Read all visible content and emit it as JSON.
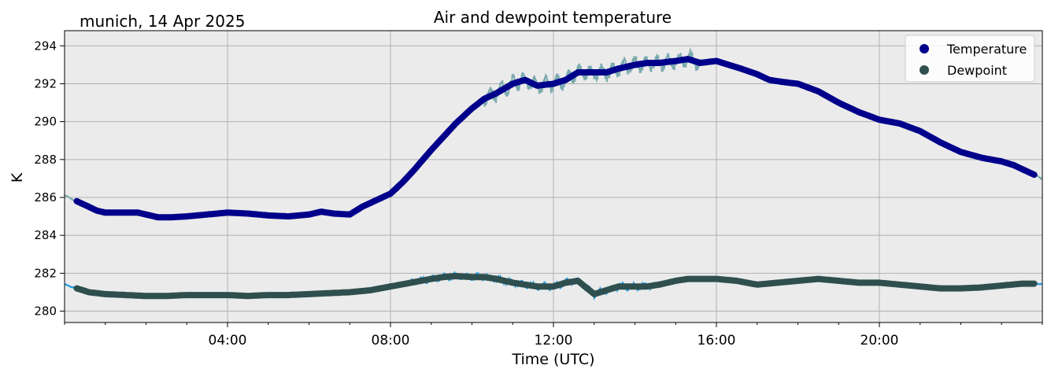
{
  "chart_data": {
    "type": "line",
    "title": "Air and dewpoint temperature",
    "subtitle": "munich, 14 Apr 2025",
    "xlabel": "Time (UTC)",
    "ylabel": "K",
    "x_unit": "hours_utc",
    "xlim": [
      0,
      24
    ],
    "ylim": [
      279.4,
      294.8
    ],
    "x_ticks": [
      {
        "value": 4,
        "label": "04:00"
      },
      {
        "value": 8,
        "label": "08:00"
      },
      {
        "value": 12,
        "label": "12:00"
      },
      {
        "value": 16,
        "label": "16:00"
      },
      {
        "value": 20,
        "label": "20:00"
      }
    ],
    "y_ticks": [
      280,
      282,
      284,
      286,
      288,
      290,
      292,
      294
    ],
    "grid": true,
    "plot_background": "#ebebeb",
    "legend": {
      "position": "top-right"
    },
    "series": [
      {
        "name": "Temperature",
        "color": "#00008b",
        "raw_color": "#7aaaae",
        "x": [
          0,
          0.3,
          0.5,
          0.8,
          1,
          1.5,
          1.8,
          2,
          2.3,
          2.6,
          3,
          3.5,
          4,
          4.5,
          5,
          5.5,
          6,
          6.3,
          6.6,
          7,
          7.3,
          7.6,
          8,
          8.3,
          8.6,
          9,
          9.3,
          9.6,
          10,
          10.3,
          10.6,
          11,
          11.3,
          11.6,
          12,
          12.3,
          12.6,
          13,
          13.3,
          13.6,
          14,
          14.3,
          14.6,
          15,
          15.3,
          15.6,
          16,
          16.3,
          16.6,
          17,
          17.3,
          17.6,
          18,
          18.5,
          19,
          19.5,
          20,
          20.5,
          21,
          21.5,
          22,
          22.5,
          23,
          23.3,
          23.6,
          24
        ],
        "y": [
          286.1,
          285.8,
          285.6,
          285.3,
          285.2,
          285.2,
          285.2,
          285.1,
          284.95,
          284.95,
          285.0,
          285.1,
          285.2,
          285.15,
          285.05,
          285.0,
          285.1,
          285.25,
          285.15,
          285.1,
          285.5,
          285.8,
          286.2,
          286.8,
          287.5,
          288.5,
          289.2,
          289.9,
          290.7,
          291.2,
          291.5,
          292.0,
          292.2,
          291.9,
          292.0,
          292.2,
          292.6,
          292.6,
          292.6,
          292.8,
          293.0,
          293.1,
          293.1,
          293.2,
          293.3,
          293.1,
          293.2,
          293.0,
          292.8,
          292.5,
          292.2,
          292.1,
          292.0,
          291.6,
          291.0,
          290.5,
          290.1,
          289.9,
          289.5,
          288.9,
          288.4,
          288.1,
          287.9,
          287.7,
          287.4,
          287.0
        ]
      },
      {
        "name": "Dewpoint",
        "color": "#2f4f4f",
        "raw_color": "#1e9be0",
        "x": [
          0,
          0.3,
          0.6,
          1,
          1.5,
          2,
          2.5,
          3,
          3.5,
          4,
          4.5,
          5,
          5.5,
          6,
          6.5,
          7,
          7.5,
          8,
          8.5,
          9,
          9.3,
          9.6,
          10,
          10.3,
          10.6,
          11,
          11.3,
          11.6,
          12,
          12.3,
          12.6,
          13,
          13.3,
          13.6,
          14,
          14.3,
          14.6,
          15,
          15.3,
          15.6,
          16,
          16.5,
          17,
          17.5,
          18,
          18.5,
          19,
          19.5,
          20,
          20.5,
          21,
          21.5,
          22,
          22.5,
          23,
          23.5,
          24
        ],
        "y": [
          281.4,
          281.2,
          281.0,
          280.9,
          280.85,
          280.8,
          280.8,
          280.85,
          280.85,
          280.85,
          280.8,
          280.85,
          280.85,
          280.9,
          280.95,
          281.0,
          281.1,
          281.3,
          281.5,
          281.7,
          281.8,
          281.85,
          281.8,
          281.8,
          281.7,
          281.5,
          281.4,
          281.3,
          281.3,
          281.5,
          281.6,
          280.9,
          281.1,
          281.3,
          281.3,
          281.3,
          281.4,
          281.6,
          281.7,
          281.7,
          281.7,
          281.6,
          281.4,
          281.5,
          281.6,
          281.7,
          281.6,
          281.5,
          281.5,
          281.4,
          281.3,
          281.2,
          281.2,
          281.25,
          281.35,
          281.45,
          281.45
        ]
      }
    ]
  }
}
